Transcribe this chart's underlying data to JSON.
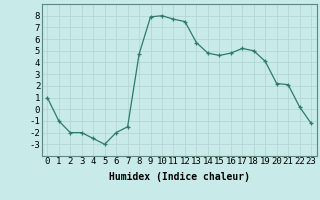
{
  "x": [
    0,
    1,
    2,
    3,
    4,
    5,
    6,
    7,
    8,
    9,
    10,
    11,
    12,
    13,
    14,
    15,
    16,
    17,
    18,
    19,
    20,
    21,
    22,
    23
  ],
  "y": [
    1,
    -1,
    -2,
    -2,
    -2.5,
    -3,
    -2,
    -1.5,
    4.7,
    7.9,
    8.0,
    7.7,
    7.5,
    5.7,
    4.8,
    4.6,
    4.8,
    5.2,
    5.0,
    4.1,
    2.2,
    2.1,
    0.2,
    -1.2
  ],
  "line_color": "#2d7a6e",
  "marker_color": "#2d7a6e",
  "bg_color": "#c8eae8",
  "grid_color": "#b0d4d0",
  "grid_color_minor": "#d0e8e4",
  "xlabel": "Humidex (Indice chaleur)",
  "ylim": [
    -4,
    9
  ],
  "xlim": [
    -0.5,
    23.5
  ],
  "yticks": [
    -3,
    -2,
    -1,
    0,
    1,
    2,
    3,
    4,
    5,
    6,
    7,
    8
  ],
  "xticks": [
    0,
    1,
    2,
    3,
    4,
    5,
    6,
    7,
    8,
    9,
    10,
    11,
    12,
    13,
    14,
    15,
    16,
    17,
    18,
    19,
    20,
    21,
    22,
    23
  ],
  "xlabel_fontsize": 7,
  "tick_fontsize": 6.5
}
